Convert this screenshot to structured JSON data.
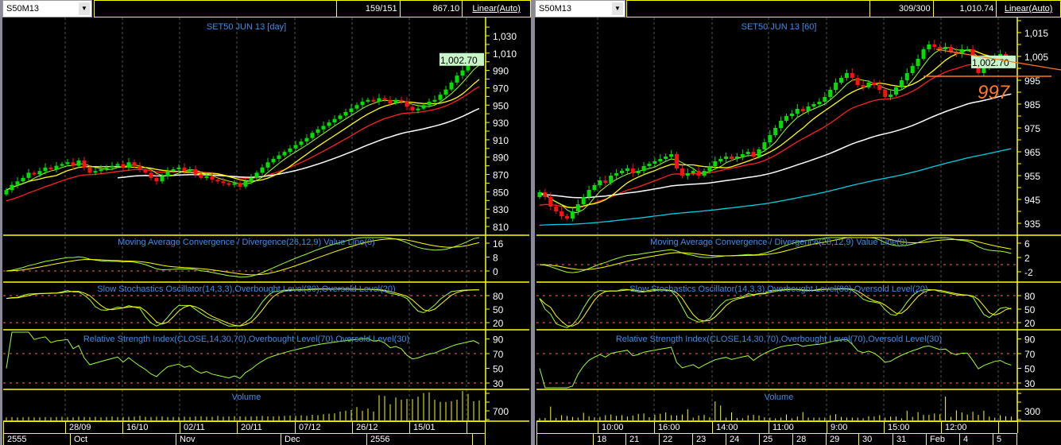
{
  "left": {
    "symbol": "S50M13",
    "info": {
      "count": "159/151",
      "price": "867.10",
      "scale": "Linear(Auto)"
    },
    "title": "SET50 JUN 13  [day]",
    "last_price_label": "1,002.70",
    "price_ticks": [
      "1,030",
      "1,010",
      "990",
      "970",
      "950",
      "930",
      "910",
      "890",
      "870",
      "850",
      "830",
      "810"
    ],
    "price_tick_values": [
      1030,
      1010,
      990,
      970,
      950,
      930,
      910,
      890,
      870,
      850,
      830,
      810
    ],
    "macd_title": "Moving Average Convergence / Divergence(26,12,9) Value Line(0)",
    "macd_ticks": [
      "16",
      "8",
      "0"
    ],
    "macd_tick_values": [
      16,
      8,
      0
    ],
    "stoch_title": "Slow Stochastics Oscillator(14,3,3),Overbought Level(80),Oversold Level(20)",
    "stoch_ticks": [
      "80",
      "50",
      "20"
    ],
    "rsi_title": "Relative Strength Index(CLOSE,14,30,70),Overbought Level(70),Oversold Level(30)",
    "rsi_ticks": [
      "90",
      "70",
      "50",
      "30"
    ],
    "volume_title": "Volume",
    "volume_ticks": [
      "700"
    ],
    "date_labels": [
      "28/09",
      "16/10",
      "02/11",
      "20/11",
      "07/12",
      "26/12",
      "15/01"
    ],
    "period_labels": [
      "2555",
      "Oct",
      "Nov",
      "Dec",
      "2556"
    ]
  },
  "right": {
    "symbol": "S50M13",
    "info": {
      "count": "309/300",
      "price": "1,010.74",
      "scale": "Linear(Auto)"
    },
    "title": "SET50 JUN 13  [60]",
    "last_price_label": "1,002.70",
    "annotation": "997",
    "price_ticks": [
      "1,015",
      "1,005",
      "995",
      "985",
      "975",
      "965",
      "955",
      "945",
      "935"
    ],
    "price_tick_values": [
      1015,
      1005,
      995,
      985,
      975,
      965,
      955,
      945,
      935
    ],
    "macd_title": "Moving Average Convergence / Divergence(26,12,9) Value Line(0)",
    "macd_ticks": [
      "6",
      "2",
      "-2"
    ],
    "macd_tick_values": [
      6,
      2,
      -2
    ],
    "stoch_title": "Slow Stochastics Oscillator(14,3,3),Overbought Level(80),Oversold Level(20)",
    "stoch_ticks": [
      "80",
      "50",
      "20"
    ],
    "rsi_title": "Relative Strength Index(CLOSE,14,30,70),Overbought Level(70),Oversold Level(30)",
    "rsi_ticks": [
      "90",
      "70",
      "50",
      "30"
    ],
    "volume_title": "Volume",
    "volume_ticks": [
      "300"
    ],
    "date_labels": [
      "10:00",
      "16:00",
      "14:00",
      "11:00",
      "9:00",
      "15:00",
      "12:00"
    ],
    "period_labels": [
      "18",
      "21",
      "22",
      "23",
      "24",
      "25",
      "28",
      "29",
      "30",
      "31",
      "Feb",
      "4",
      "5"
    ]
  },
  "colors": {
    "up": "#00e000",
    "down": "#ff1010",
    "ma_fast": "#a0ff30",
    "ma_mid": "#ffff00",
    "ma_slow": "#ff2020",
    "ma_long": "#ffffff",
    "ma_xlong": "#00d0e0",
    "grid": "#ffff00",
    "title": "#3c8ee8",
    "annotation": "#ff7a20",
    "price_label_bg": "#c8f5c8"
  },
  "chart_data": [
    {
      "type": "candlestick",
      "name": "SET50 JUN 13 [day]",
      "closes": [
        852,
        858,
        862,
        866,
        872,
        870,
        874,
        878,
        876,
        880,
        882,
        884,
        880,
        886,
        878,
        872,
        874,
        876,
        878,
        880,
        882,
        878,
        884,
        880,
        876,
        872,
        866,
        862,
        868,
        874,
        876,
        878,
        874,
        876,
        870,
        866,
        868,
        864,
        862,
        860,
        858,
        860,
        856,
        862,
        866,
        872,
        878,
        884,
        888,
        892,
        896,
        900,
        904,
        908,
        912,
        918,
        922,
        926,
        930,
        934,
        938,
        942,
        946,
        950,
        954,
        956,
        954,
        958,
        956,
        952,
        956,
        954,
        948,
        944,
        946,
        950,
        954,
        956,
        962,
        968,
        976,
        984,
        990,
        998,
        1006,
        1002.7
      ],
      "volume": [
        200,
        220,
        200,
        210,
        230,
        200,
        210,
        220,
        200,
        230,
        240,
        220,
        210,
        250,
        230,
        220,
        240,
        210,
        230,
        260,
        220,
        230,
        240,
        250,
        300,
        240,
        230,
        250,
        260,
        220,
        230,
        240,
        250,
        230,
        260,
        280,
        250,
        240,
        300,
        250,
        260,
        280,
        270,
        250,
        260,
        280,
        300,
        270,
        260,
        290,
        300,
        320,
        310,
        340,
        300,
        380,
        350,
        420,
        450,
        480,
        600,
        650,
        700,
        900,
        650,
        800,
        600,
        1700,
        1650,
        1100,
        1550,
        1400,
        1450,
        1450,
        1600,
        1850,
        1900,
        1400,
        1250,
        1250,
        1300,
        1400,
        2500,
        1800,
        1300,
        1350
      ],
      "ylim": [
        800,
        1040
      ]
    },
    {
      "type": "candlestick",
      "name": "SET50 JUN 13 [60]",
      "closes": [
        948,
        946,
        942,
        940,
        938,
        937,
        940,
        943,
        946,
        949,
        951,
        953,
        952,
        955,
        956,
        957,
        958,
        956,
        957,
        959,
        960,
        961,
        962,
        963,
        964,
        958,
        955,
        956,
        957,
        955,
        957,
        959,
        961,
        962,
        963,
        962,
        963,
        964,
        965,
        963,
        966,
        969,
        972,
        975,
        978,
        980,
        981,
        983,
        982,
        984,
        985,
        986,
        988,
        991,
        994,
        996,
        998,
        996,
        993,
        992,
        994,
        993,
        991,
        988,
        989,
        992,
        995,
        998,
        1001,
        1004,
        1008,
        1010,
        1009,
        1008,
        1009,
        1007,
        1006,
        1008,
        1008,
        1004,
        998,
        1001,
        1003,
        1005,
        1006,
        1004,
        1002.7
      ],
      "volume": [
        60,
        70,
        400,
        70,
        150,
        130,
        100,
        80,
        220,
        120,
        90,
        100,
        150,
        170,
        130,
        150,
        110,
        140,
        190,
        200,
        90,
        160,
        190,
        230,
        150,
        140,
        170,
        320,
        80,
        140,
        160,
        90,
        550,
        430,
        80,
        230,
        70,
        60,
        150,
        160,
        140,
        90,
        80,
        60,
        80,
        170,
        60,
        110,
        240,
        80,
        80,
        80,
        80,
        150,
        180,
        100,
        80,
        80,
        80,
        60,
        120,
        110,
        150,
        80,
        110,
        110,
        60,
        280,
        100,
        240,
        160,
        160,
        200,
        180,
        690,
        100,
        290,
        230,
        170,
        250,
        160,
        280,
        110,
        80,
        150,
        120,
        110
      ],
      "ylim": [
        930,
        1020
      ],
      "trendline_resistance": [
        1010,
        1005
      ],
      "support_level": 997
    }
  ]
}
